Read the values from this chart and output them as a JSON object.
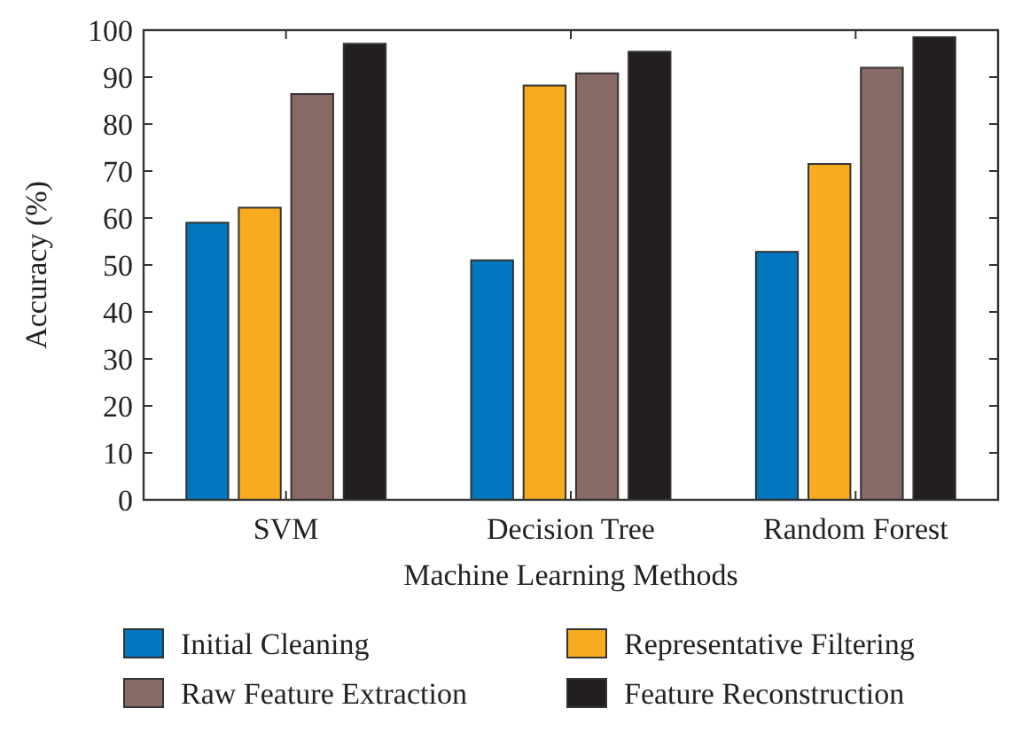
{
  "chart_data": {
    "type": "bar",
    "xlabel": "Machine Learning Methods",
    "ylabel": "Accuracy (%)",
    "categories": [
      "SVM",
      "Decision Tree",
      "Random Forest"
    ],
    "series": [
      {
        "name": "Initial Cleaning",
        "color": "#0077be",
        "values": [
          59,
          51,
          52.8
        ]
      },
      {
        "name": "Representative Filtering",
        "color": "#f9ab20",
        "values": [
          62.2,
          88.2,
          71.5
        ]
      },
      {
        "name": "Raw Feature Extraction",
        "color": "#886a64",
        "values": [
          86.4,
          90.8,
          92
        ]
      },
      {
        "name": "Feature Reconstruction",
        "color": "#231f20",
        "values": [
          97.1,
          95.4,
          98.5
        ]
      }
    ],
    "ylim": [
      0,
      100
    ],
    "yticks": [
      0,
      10,
      20,
      30,
      40,
      50,
      60,
      70,
      80,
      90,
      100
    ],
    "grid": false,
    "legend": "bottom"
  }
}
